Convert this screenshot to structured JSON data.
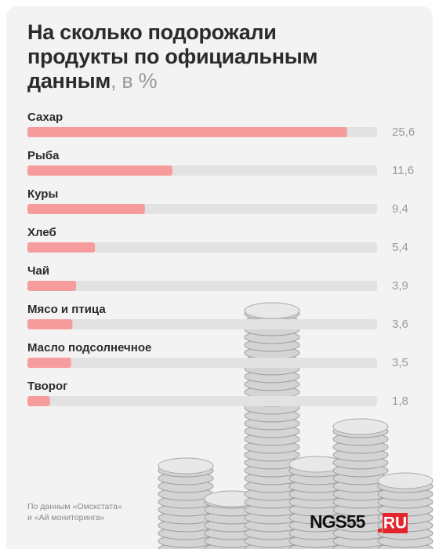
{
  "chart_data": {
    "type": "bar",
    "orientation": "horizontal",
    "title": "На сколько подорожали продукты по официальным данным",
    "unit": ", в %",
    "categories": [
      "Сахар",
      "Рыба",
      "Куры",
      "Хлеб",
      "Чай",
      "Мясо и птица",
      "Масло подсолнечное",
      "Творог"
    ],
    "values": [
      25.6,
      11.6,
      9.4,
      5.4,
      3.9,
      3.6,
      3.5,
      1.8
    ],
    "value_labels": [
      "25,6",
      "11,6",
      "9,4",
      "5,4",
      "3,9",
      "3,6",
      "3,5",
      "1,8"
    ],
    "color": "#f79c9c",
    "track_color": "#e2e2e2",
    "xlim": [
      0,
      28
    ],
    "source": [
      "По данным «Омскстата»",
      "и «Ай мониторинга»"
    ],
    "logo": "NGS55",
    "logo_suffix": "RU"
  }
}
